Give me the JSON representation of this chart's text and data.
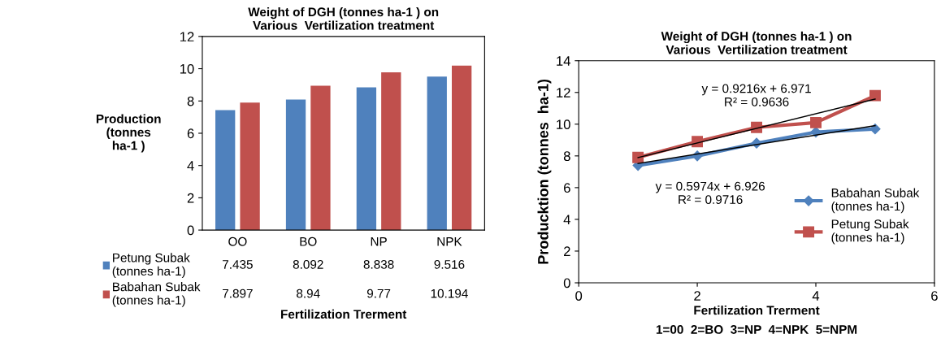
{
  "chart_data": [
    {
      "type": "bar",
      "title": "Weight of DGH (tonnes ha-1 ) on\nVarious  Vertilization treatment",
      "ylabel": "Production\n(tonnes\nha-1 )",
      "xlabel": "Fertilization Trerment",
      "categories": [
        "OO",
        "BO",
        "NP",
        "NPK"
      ],
      "series": [
        {
          "name": "Petung Subak\n(tonnes ha-1)",
          "color": "#4f81bd",
          "values": [
            7.435,
            8.092,
            8.838,
            9.516
          ]
        },
        {
          "name": "Babahan Subak\n(tonnes ha-1)",
          "color": "#c0504d",
          "values": [
            7.897,
            8.94,
            9.77,
            10.194
          ]
        }
      ],
      "ylim": [
        0,
        12
      ],
      "yticks": [
        0,
        2,
        4,
        6,
        8,
        10,
        12
      ],
      "data_labels": true,
      "legend": "bottom",
      "grid": false
    },
    {
      "type": "line",
      "title": "Weight of DGH (tonnes ha-1 ) on\nVarious  Vertilization treatment",
      "ylabel": "Producktion (tonnes  ha-1)",
      "xlabel": "Fertilization Trerment",
      "series": [
        {
          "name": "Babahan Subak\n(tonnes ha-1)",
          "color": "#4f81bd",
          "marker": "diamond",
          "x": [
            1,
            2,
            3,
            4,
            5
          ],
          "values": [
            7.4,
            8.0,
            8.8,
            9.5,
            9.7
          ]
        },
        {
          "name": "Petung Subak\n(tonnes ha-1)",
          "color": "#c0504d",
          "marker": "square",
          "x": [
            1,
            2,
            3,
            4,
            5
          ],
          "values": [
            7.9,
            8.9,
            9.8,
            10.1,
            11.8
          ]
        },
        {
          "color": "#000000",
          "marker": "none",
          "x": [
            1,
            5
          ],
          "values": [
            7.52,
            9.91
          ]
        },
        {
          "color": "#000000",
          "marker": "none",
          "x": [
            1,
            5
          ],
          "values": [
            7.89,
            11.58
          ]
        }
      ],
      "xlim": [
        0,
        6
      ],
      "xticks": [
        0,
        2,
        4,
        6
      ],
      "ylim": [
        0,
        14
      ],
      "yticks": [
        0,
        2,
        4,
        6,
        8,
        10,
        12,
        14
      ],
      "legend": "right",
      "grid": false,
      "annotations": [
        "y = 0.9216x + 6.971\nR² = 0.9636",
        "y = 0.5974x + 6.926\nR² = 0.9716",
        "1=00  2=BO  3=NP  4=NPK  5=NPM"
      ]
    }
  ]
}
